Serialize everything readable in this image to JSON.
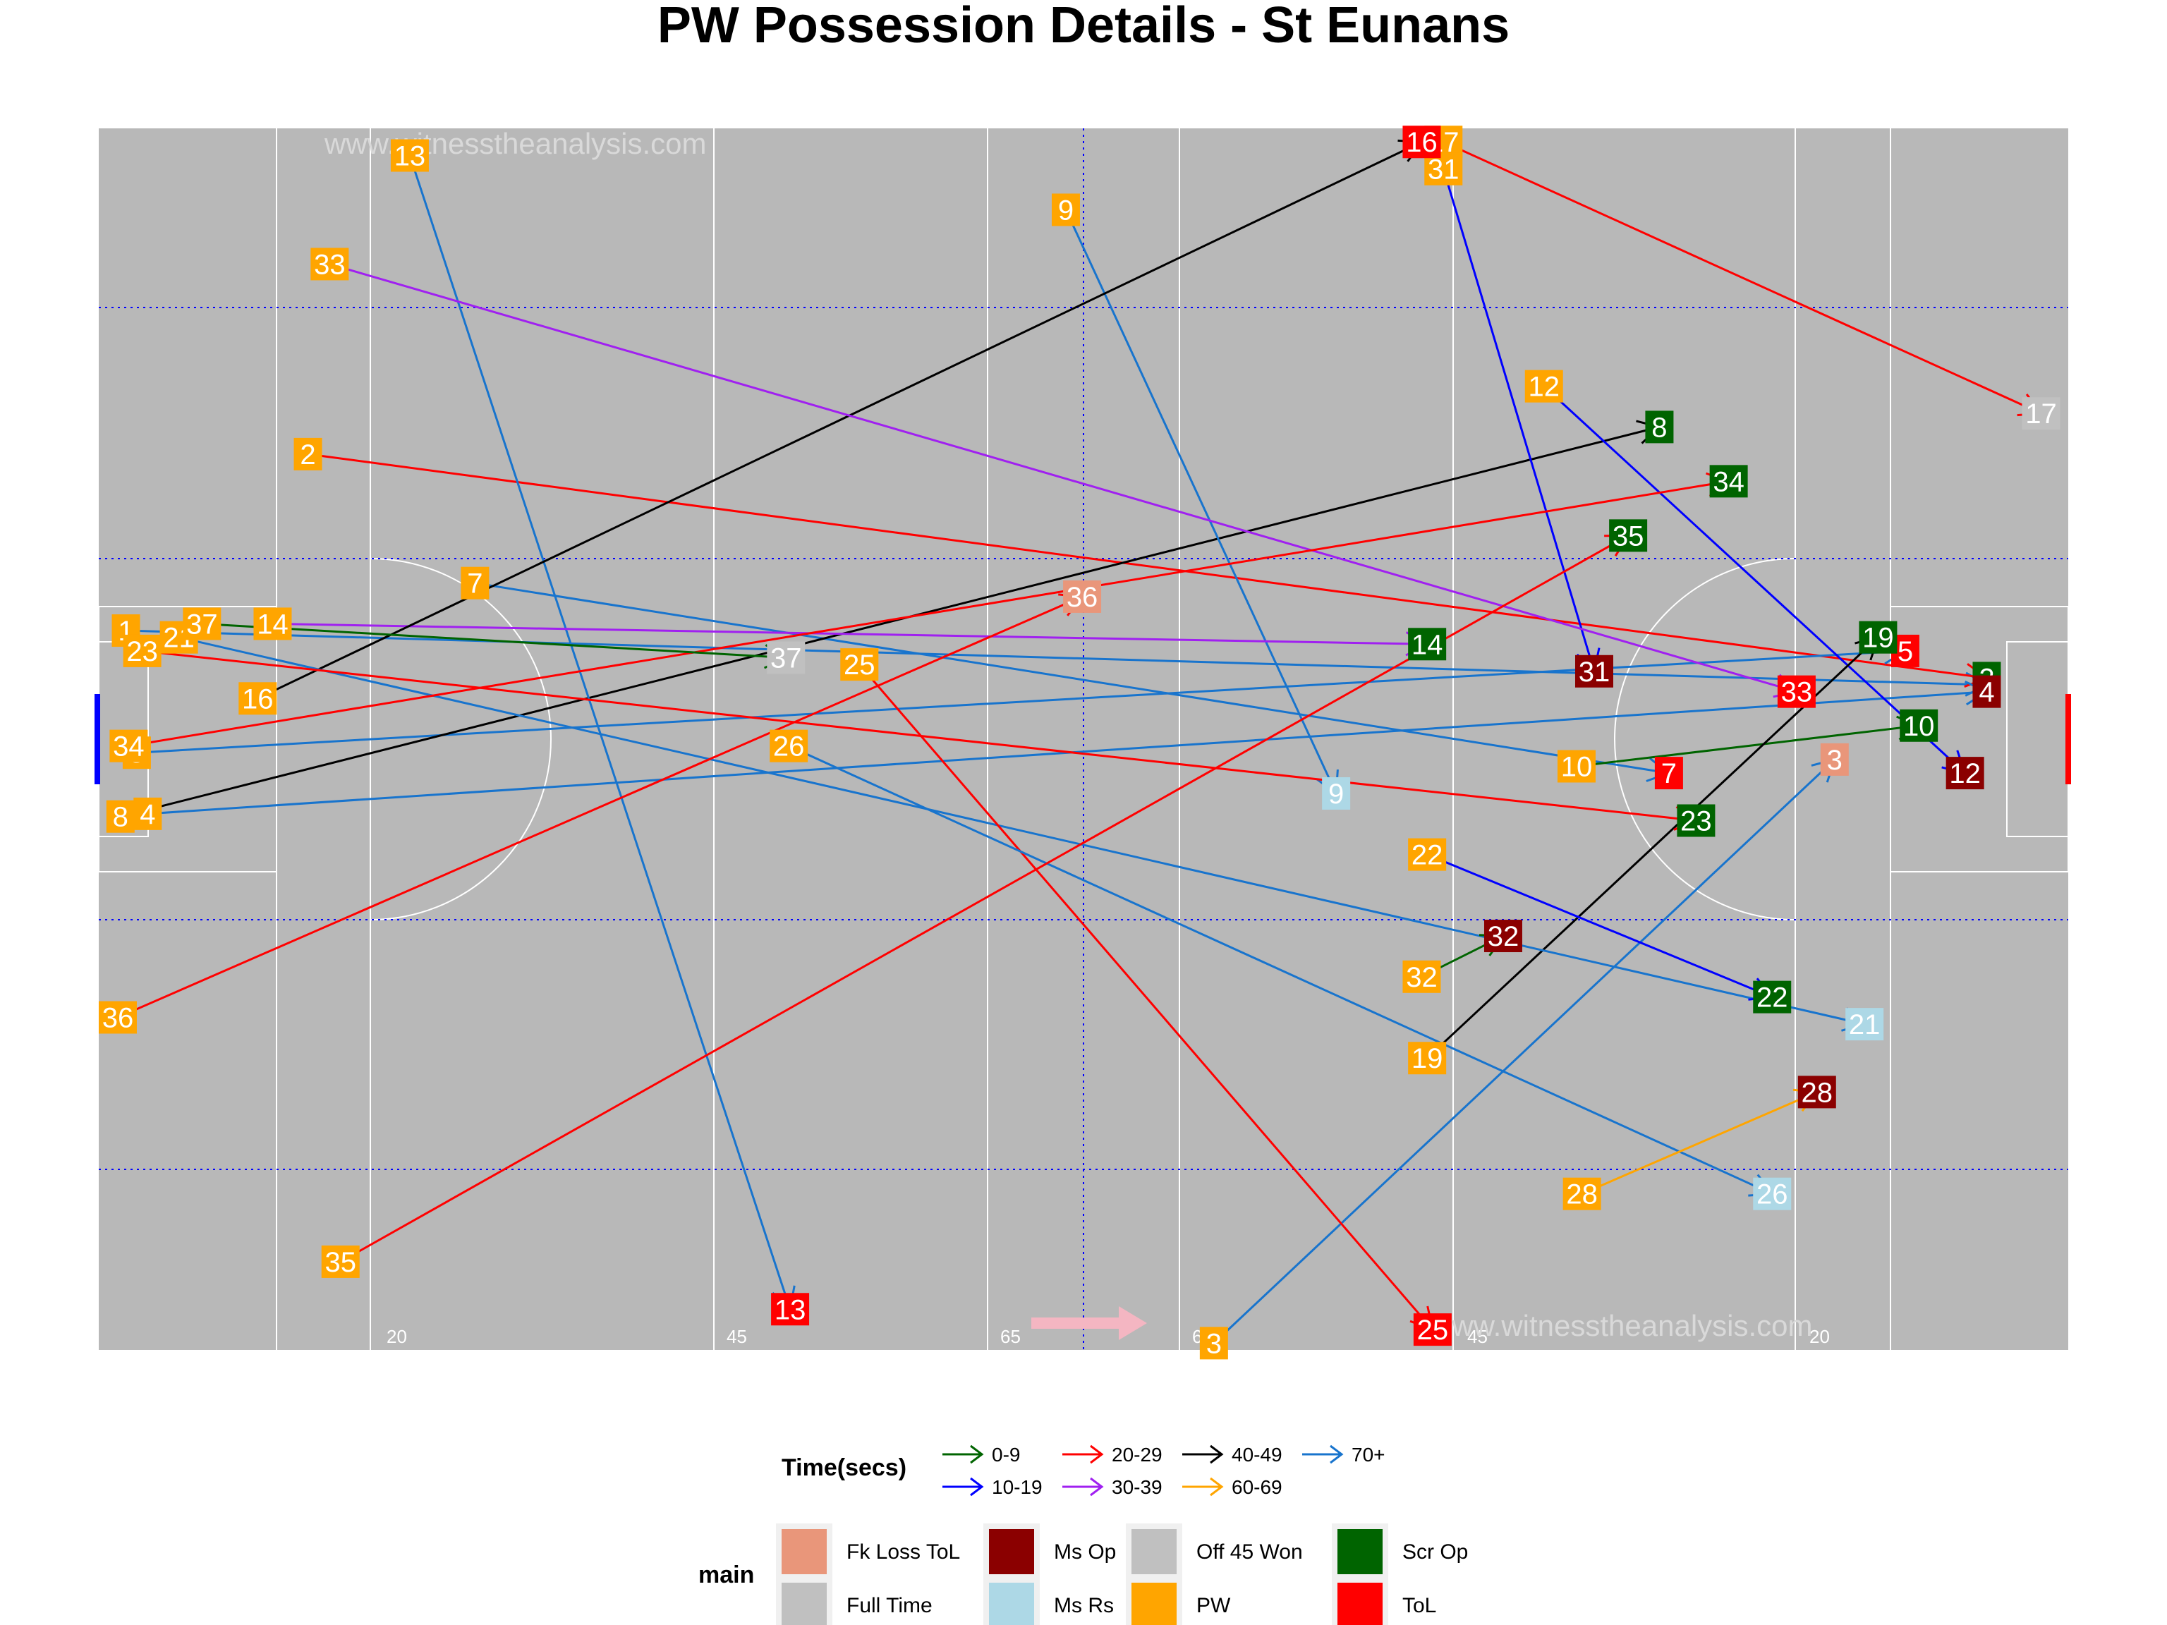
{
  "chart_data": {
    "type": "scatter",
    "title": "PW Possession Details - St Eunans",
    "watermark": "www.witnesstheanalysis.com",
    "pitch_labels": [
      "20",
      "45",
      "65",
      "65",
      "45",
      "20"
    ],
    "xlim": [
      0,
      145
    ],
    "ylim": [
      0,
      90
    ],
    "legend_time": {
      "title": "Time(secs)",
      "entries": [
        {
          "label": "0-9",
          "color": "#006400"
        },
        {
          "label": "10-19",
          "color": "#0000ff"
        },
        {
          "label": "20-29",
          "color": "#ff0000"
        },
        {
          "label": "30-39",
          "color": "#a020f0"
        },
        {
          "label": "40-49",
          "color": "#000000"
        },
        {
          "label": "60-69",
          "color": "#ffa500"
        },
        {
          "label": "70+",
          "color": "#1874cd"
        }
      ]
    },
    "legend_main": {
      "title": "main",
      "entries": [
        {
          "label": "Fk Loss ToL",
          "color": "#e9967a"
        },
        {
          "label": "Full Time",
          "color": "#c0c0c0"
        },
        {
          "label": "Ms Op",
          "color": "#8b0000"
        },
        {
          "label": "Ms Rs",
          "color": "#add8e6"
        },
        {
          "label": "Off 45 Won",
          "color": "#c0c0c0"
        },
        {
          "label": "PW",
          "color": "#ffa500"
        },
        {
          "label": "Scr Op",
          "color": "#006400"
        },
        {
          "label": "ToL",
          "color": "#ff0000"
        }
      ]
    },
    "possessions": [
      {
        "id": "1",
        "x0": 2.0,
        "y0": 53.0,
        "x1": 139.0,
        "y1": 49.0,
        "time": "70+",
        "outcome": "ToL"
      },
      {
        "id": "2",
        "x0": 15.4,
        "y0": 66.0,
        "x1": 139.0,
        "y1": 49.5,
        "time": "20-29",
        "outcome": "Scr Op"
      },
      {
        "id": "3",
        "x0": 82.1,
        "y0": 0.5,
        "x1": 127.8,
        "y1": 43.5,
        "time": "70+",
        "outcome": "Fk Loss ToL"
      },
      {
        "id": "4",
        "x0": 3.6,
        "y0": 39.5,
        "x1": 139.0,
        "y1": 48.5,
        "time": "70+",
        "outcome": "Ms Op"
      },
      {
        "id": "5",
        "x0": 2.8,
        "y0": 44.0,
        "x1": 133.0,
        "y1": 51.5,
        "time": "70+",
        "outcome": "ToL"
      },
      {
        "id": "7",
        "x0": 27.7,
        "y0": 56.5,
        "x1": 115.6,
        "y1": 42.5,
        "time": "70+",
        "outcome": "ToL"
      },
      {
        "id": "8",
        "x0": 1.6,
        "y0": 39.3,
        "x1": 114.9,
        "y1": 68.0,
        "time": "40-49",
        "outcome": "Scr Op"
      },
      {
        "id": "9",
        "x0": 71.2,
        "y0": 84.0,
        "x1": 91.1,
        "y1": 41.0,
        "time": "70+",
        "outcome": "Ms Rs"
      },
      {
        "id": "10",
        "x0": 108.8,
        "y0": 43.0,
        "x1": 134.0,
        "y1": 46.0,
        "time": "0-9",
        "outcome": "Scr Op"
      },
      {
        "id": "12",
        "x0": 106.4,
        "y0": 71.0,
        "x1": 137.4,
        "y1": 42.5,
        "time": "10-19",
        "outcome": "Ms Op"
      },
      {
        "id": "13",
        "x0": 22.9,
        "y0": 88.0,
        "x1": 50.9,
        "y1": 3.0,
        "time": "70+",
        "outcome": "ToL"
      },
      {
        "id": "14",
        "x0": 12.8,
        "y0": 53.5,
        "x1": 97.8,
        "y1": 52.0,
        "time": "30-39",
        "outcome": "Scr Op"
      },
      {
        "id": "16",
        "x0": 11.7,
        "y0": 48.0,
        "x1": 97.4,
        "y1": 89.0,
        "time": "40-49",
        "outcome": "ToL"
      },
      {
        "id": "17",
        "x0": 99.0,
        "y0": 89.0,
        "x1": 143.0,
        "y1": 69.0,
        "time": "20-29",
        "outcome": "Off 45 Won"
      },
      {
        "id": "19",
        "x0": 97.8,
        "y0": 21.5,
        "x1": 131.0,
        "y1": 52.5,
        "time": "40-49",
        "outcome": "Scr Op"
      },
      {
        "id": "21",
        "x0": 5.9,
        "y0": 52.5,
        "x1": 130.0,
        "y1": 24.0,
        "time": "70+",
        "outcome": "Ms Rs"
      },
      {
        "id": "22",
        "x0": 97.8,
        "y0": 36.5,
        "x1": 123.2,
        "y1": 26.0,
        "time": "10-19",
        "outcome": "Scr Op"
      },
      {
        "id": "23",
        "x0": 3.2,
        "y0": 51.5,
        "x1": 117.6,
        "y1": 39.0,
        "time": "20-29",
        "outcome": "Scr Op"
      },
      {
        "id": "25",
        "x0": 56.0,
        "y0": 50.5,
        "x1": 98.2,
        "y1": 1.5,
        "time": "20-29",
        "outcome": "ToL"
      },
      {
        "id": "26",
        "x0": 50.8,
        "y0": 44.5,
        "x1": 123.2,
        "y1": 11.5,
        "time": "70+",
        "outcome": "Ms Rs"
      },
      {
        "id": "28",
        "x0": 109.2,
        "y0": 11.5,
        "x1": 126.5,
        "y1": 19.0,
        "time": "60-69",
        "outcome": "Ms Op"
      },
      {
        "id": "31",
        "x0": 99.0,
        "y0": 87.0,
        "x1": 110.1,
        "y1": 50.0,
        "time": "10-19",
        "outcome": "Ms Op"
      },
      {
        "id": "32",
        "x0": 97.4,
        "y0": 27.5,
        "x1": 103.4,
        "y1": 30.5,
        "time": "0-9",
        "outcome": "Ms Op"
      },
      {
        "id": "33",
        "x0": 17.0,
        "y0": 80.0,
        "x1": 125.0,
        "y1": 48.5,
        "time": "30-39",
        "outcome": "ToL"
      },
      {
        "id": "34",
        "x0": 2.2,
        "y0": 44.5,
        "x1": 120.0,
        "y1": 64.0,
        "time": "20-29",
        "outcome": "Scr Op"
      },
      {
        "id": "35",
        "x0": 17.8,
        "y0": 6.5,
        "x1": 112.6,
        "y1": 60.0,
        "time": "20-29",
        "outcome": "Scr Op"
      },
      {
        "id": "36",
        "x0": 1.4,
        "y0": 24.5,
        "x1": 72.4,
        "y1": 55.5,
        "time": "20-29",
        "outcome": "Fk Loss ToL"
      },
      {
        "id": "37",
        "x0": 7.6,
        "y0": 53.5,
        "x1": 50.6,
        "y1": 51.0,
        "time": "0-9",
        "outcome": "Full Time"
      }
    ]
  }
}
